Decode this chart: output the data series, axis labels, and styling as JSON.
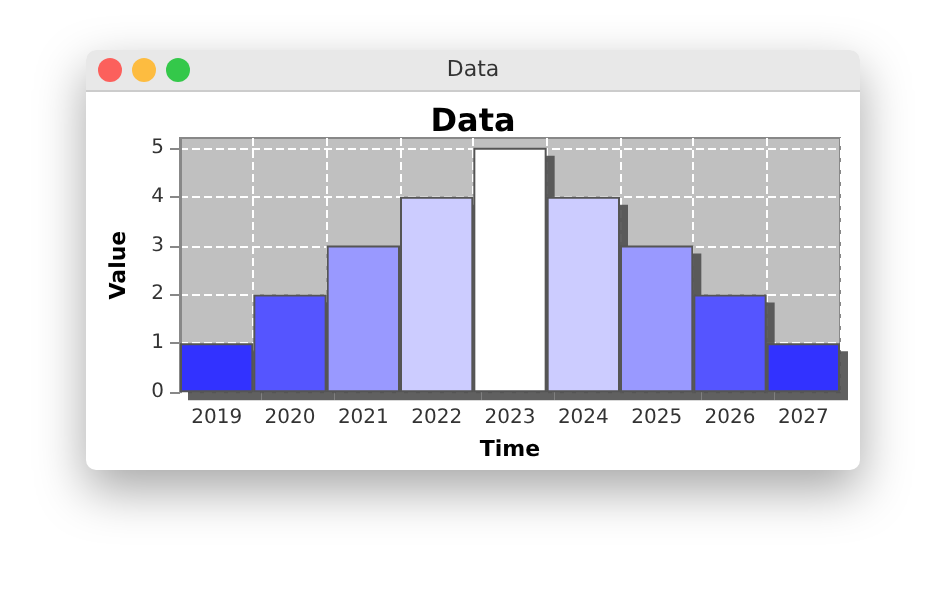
{
  "chart_data": {
    "type": "bar",
    "title": "Data",
    "xlabel": "Time",
    "ylabel": "Value",
    "annotations": [
      "Data"
    ],
    "categories": [
      "2019",
      "2020",
      "2021",
      "2022",
      "2023",
      "2024",
      "2025",
      "2026",
      "2027"
    ],
    "values": [
      1,
      2,
      3,
      4,
      5,
      4,
      3,
      2,
      1
    ],
    "colors": [
      "#3333ff",
      "#5555ff",
      "#9999ff",
      "#ccccff",
      "#ffffff",
      "#ccccff",
      "#9999ff",
      "#5555ff",
      "#3333ff"
    ],
    "ylim": [
      0,
      5.2
    ],
    "yticks": [
      0,
      1,
      2,
      3,
      4,
      5
    ],
    "grid": true
  }
}
